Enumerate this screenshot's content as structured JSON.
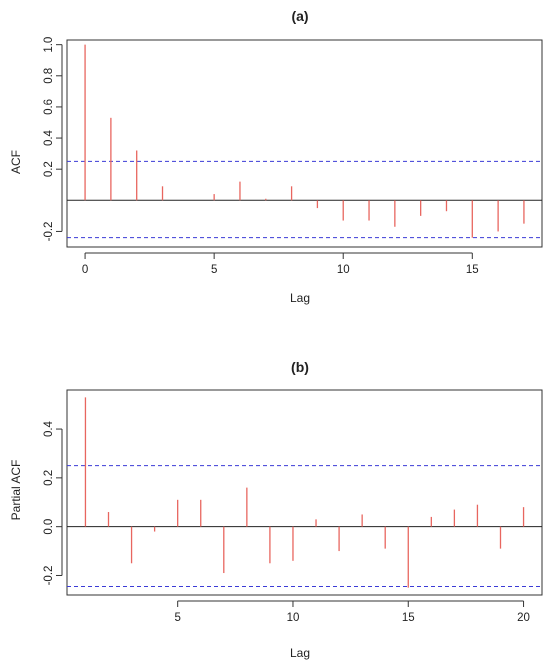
{
  "colors": {
    "bar": "#e8665f",
    "ci": "#3b3bd6",
    "axis": "#333333"
  },
  "chart_data": [
    {
      "type": "bar",
      "title": "(a)",
      "xlabel": "Lag",
      "ylabel": "ACF",
      "xlim": [
        -0.7,
        17.7
      ],
      "ylim": [
        -0.3,
        1.03
      ],
      "x_ticks": [
        0,
        5,
        10,
        15
      ],
      "y_ticks": [
        -0.2,
        0.2,
        0.4,
        0.6,
        0.8,
        1.0
      ],
      "y_tick_labels": [
        "-0.2",
        "0.2",
        "0.4",
        "0.6",
        "0.8",
        "1.0"
      ],
      "confidence_bounds": [
        0.25,
        -0.24
      ],
      "lags": [
        0,
        1,
        2,
        3,
        4,
        5,
        6,
        7,
        8,
        9,
        10,
        11,
        12,
        13,
        14,
        15,
        16,
        17
      ],
      "values": [
        1.0,
        0.53,
        0.32,
        0.09,
        0.0,
        0.04,
        0.12,
        0.01,
        0.09,
        -0.05,
        -0.13,
        -0.13,
        -0.17,
        -0.1,
        -0.07,
        -0.24,
        -0.2,
        -0.15
      ],
      "grid": false
    },
    {
      "type": "bar",
      "title": "(b)",
      "xlabel": "Lag",
      "ylabel": "Partial ACF",
      "xlim": [
        0.2,
        20.8
      ],
      "ylim": [
        -0.28,
        0.56
      ],
      "x_ticks": [
        5,
        10,
        15,
        20
      ],
      "y_ticks": [
        -0.2,
        0.0,
        0.2,
        0.4
      ],
      "y_tick_labels": [
        "-0.2",
        "0.0",
        "0.2",
        "0.4"
      ],
      "confidence_bounds": [
        0.25,
        -0.245
      ],
      "lags": [
        1,
        2,
        3,
        4,
        5,
        6,
        7,
        8,
        9,
        10,
        11,
        12,
        13,
        14,
        15,
        16,
        17,
        18,
        19,
        20
      ],
      "values": [
        0.53,
        0.06,
        -0.15,
        -0.02,
        0.11,
        0.11,
        -0.19,
        0.16,
        -0.15,
        -0.14,
        0.03,
        -0.1,
        0.05,
        -0.09,
        -0.25,
        0.04,
        0.07,
        0.09,
        -0.09,
        0.08
      ],
      "grid": false
    }
  ]
}
